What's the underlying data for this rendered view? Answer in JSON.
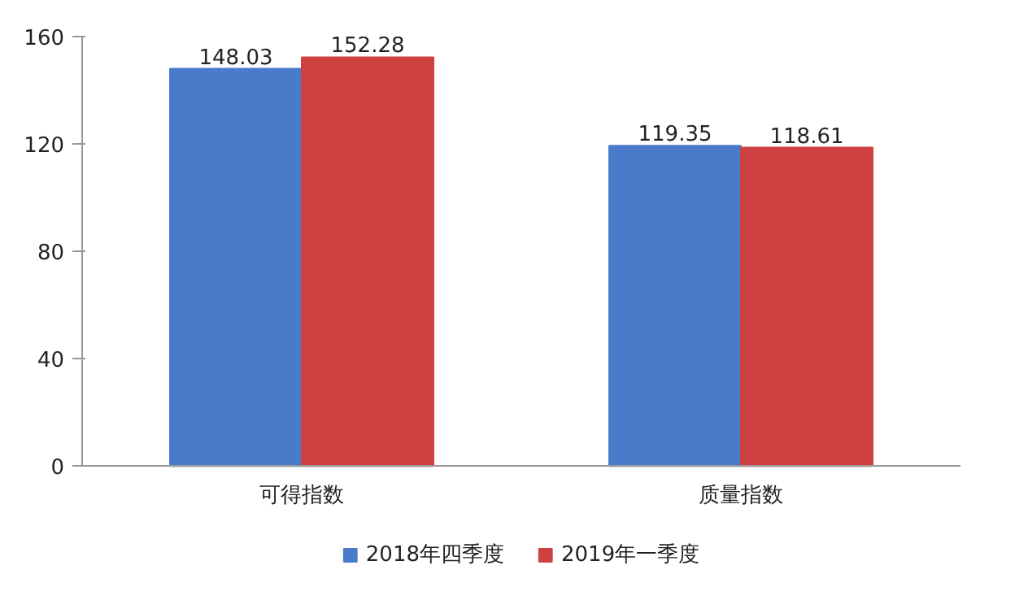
{
  "chart_data": {
    "type": "bar",
    "categories": [
      "可得指数",
      "质量指数"
    ],
    "series": [
      {
        "name": "2018年四季度",
        "color": "#4a7bcb",
        "values": [
          148.03,
          119.35
        ]
      },
      {
        "name": "2019年一季度",
        "color": "#cf4040",
        "values": [
          152.28,
          118.61
        ]
      }
    ],
    "ylim": [
      0,
      160
    ],
    "yticks": [
      0,
      40,
      80,
      120,
      160
    ],
    "legend": "bottom",
    "data_labels": true
  }
}
